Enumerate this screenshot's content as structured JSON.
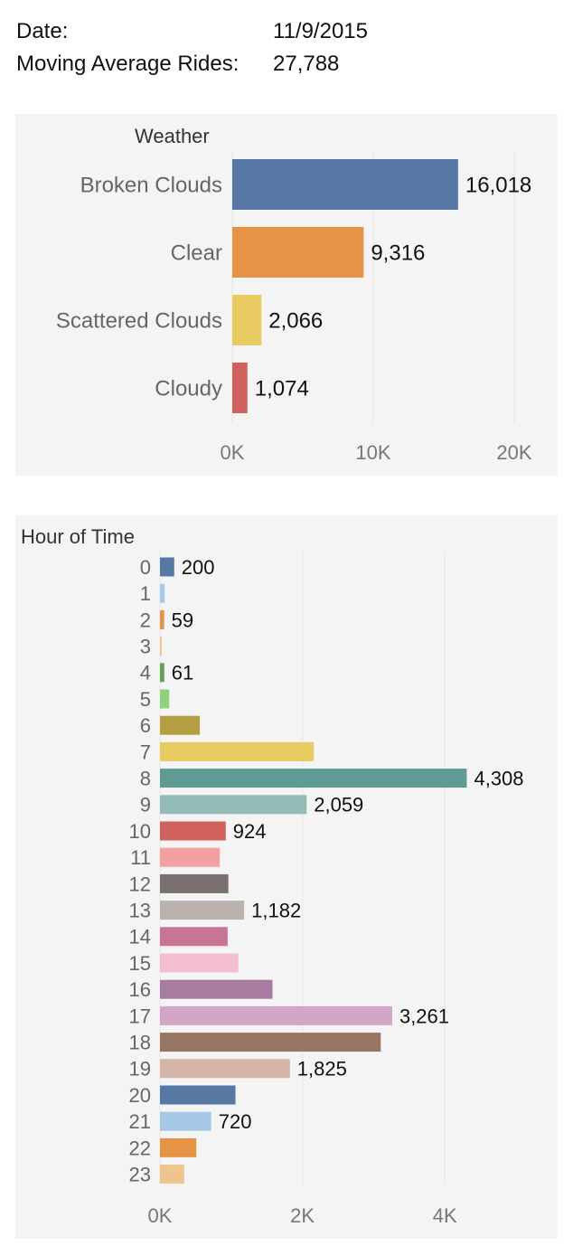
{
  "header": {
    "date_label": "Date:",
    "date_value": "11/9/2015",
    "rides_label": "Moving Average Rides:",
    "rides_value": "27,788"
  },
  "chart_data": [
    {
      "type": "bar",
      "orientation": "horizontal",
      "title": "",
      "dimension_label": "Weather",
      "categories": [
        "Broken Clouds",
        "Clear",
        "Scattered Clouds",
        "Cloudy"
      ],
      "values": [
        16018,
        9316,
        2066,
        1074
      ],
      "value_labels": [
        "16,018",
        "9,316",
        "2,066",
        "1,074"
      ],
      "colors": [
        "#5778a4",
        "#e49444",
        "#e7ca60",
        "#d1615d"
      ],
      "xlim": [
        0,
        20000
      ],
      "ticks": [
        0,
        10000,
        20000
      ],
      "tick_labels": [
        "0K",
        "10K",
        "20K"
      ],
      "grid": true,
      "legend": "none"
    },
    {
      "type": "bar",
      "orientation": "horizontal",
      "title": "",
      "dimension_label": "Hour of Time",
      "categories": [
        "0",
        "1",
        "2",
        "3",
        "4",
        "5",
        "6",
        "7",
        "8",
        "9",
        "10",
        "11",
        "12",
        "13",
        "14",
        "15",
        "16",
        "17",
        "18",
        "19",
        "20",
        "21",
        "22",
        "23"
      ],
      "values": [
        200,
        65,
        59,
        25,
        61,
        130,
        560,
        2160,
        4308,
        2059,
        924,
        840,
        960,
        1182,
        950,
        1100,
        1580,
        3261,
        3100,
        1825,
        1060,
        720,
        510,
        340
      ],
      "value_labels": [
        "200",
        "",
        "59",
        "",
        "61",
        "",
        "",
        "",
        "4,308",
        "2,059",
        "924",
        "",
        "",
        "1,182",
        "",
        "",
        "",
        "3,261",
        "",
        "1,825",
        "",
        "720",
        "",
        ""
      ],
      "colors": [
        "#5778a4",
        "#a7c8e7",
        "#e49444",
        "#f0c48f",
        "#6a9f58",
        "#8fd07a",
        "#b59e42",
        "#e7ca60",
        "#5f9b94",
        "#95bbb6",
        "#d1615d",
        "#f2a1a0",
        "#7a7070",
        "#bcb2ad",
        "#c87494",
        "#f3bfd0",
        "#a87c9f",
        "#d3a6c7",
        "#967662",
        "#d4b5a8",
        "#5778a4",
        "#a7c8e7",
        "#e49444",
        "#f0c48f"
      ],
      "xlim": [
        0,
        5000
      ],
      "ticks": [
        0,
        2000,
        4000
      ],
      "tick_labels": [
        "0K",
        "2K",
        "4K"
      ],
      "grid": true,
      "legend": "none"
    }
  ]
}
